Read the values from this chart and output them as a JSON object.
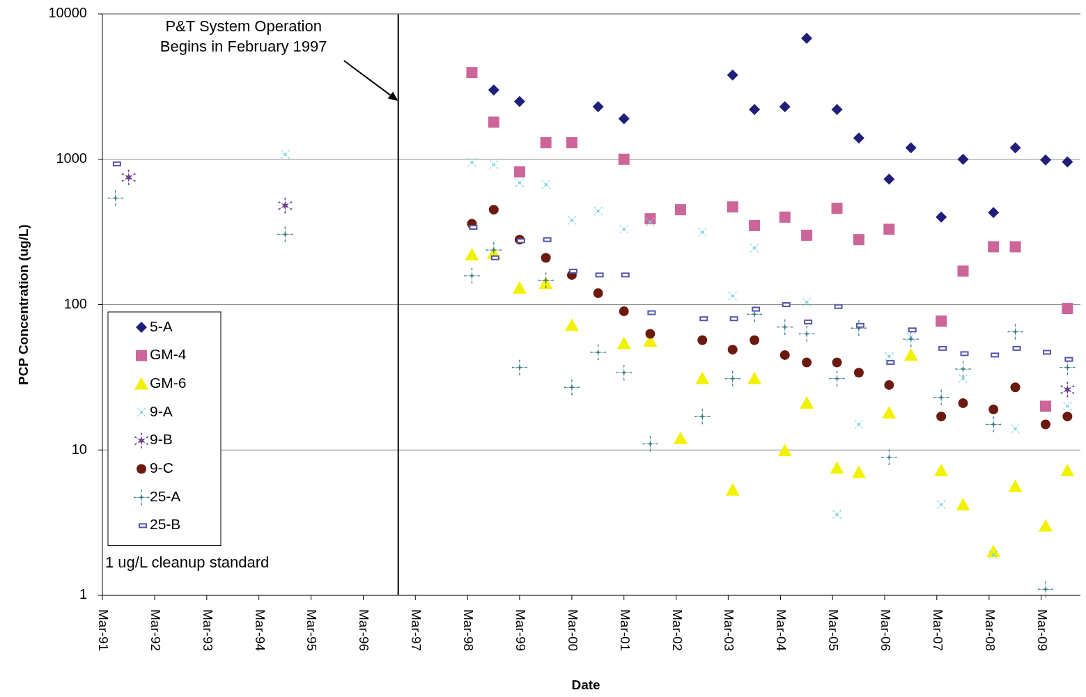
{
  "chart_data": {
    "type": "scatter",
    "xlabel": "Date",
    "ylabel": "PCP Concentration (ug/L)",
    "x": [
      "1991-06",
      "1991-09",
      "1994-09",
      "1998-04",
      "1998-09",
      "1999-03",
      "1999-09",
      "2000-03",
      "2000-09",
      "2001-03",
      "2001-09",
      "2002-04",
      "2002-09",
      "2003-04",
      "2003-09",
      "2004-04",
      "2004-09",
      "2005-04",
      "2005-09",
      "2006-04",
      "2006-09",
      "2007-04",
      "2007-09",
      "2008-04",
      "2008-09",
      "2009-04",
      "2009-09"
    ],
    "series": [
      {
        "name": "5-A",
        "color": "#1f1f7a",
        "marker": "diamond",
        "values": [
          null,
          null,
          null,
          null,
          3000,
          2500,
          null,
          null,
          2300,
          1900,
          null,
          null,
          null,
          3800,
          2200,
          2300,
          6800,
          2200,
          1400,
          730,
          1200,
          400,
          1000,
          430,
          1200,
          990,
          960
        ]
      },
      {
        "name": "GM-4",
        "color": "#cc6699",
        "marker": "square",
        "values": [
          null,
          null,
          null,
          3950,
          1800,
          820,
          1300,
          1300,
          null,
          1000,
          390,
          450,
          null,
          470,
          350,
          400,
          300,
          460,
          280,
          330,
          null,
          77,
          170,
          250,
          250,
          20,
          94
        ]
      },
      {
        "name": "GM-6",
        "color": "#f2f200",
        "marker": "triangle",
        "values": [
          null,
          null,
          null,
          220,
          225,
          130,
          140,
          72,
          null,
          54,
          56,
          12,
          31,
          5.3,
          31,
          9.9,
          21,
          7.5,
          7,
          18,
          45,
          7.2,
          4.2,
          2,
          5.6,
          3,
          7.2
        ]
      },
      {
        "name": "9-A",
        "color": "#7fd3dc",
        "marker": "cross",
        "values": [
          null,
          null,
          1080,
          950,
          920,
          690,
          670,
          380,
          440,
          330,
          370,
          null,
          315,
          115,
          245,
          null,
          104,
          3.6,
          15,
          44,
          60,
          4.2,
          31,
          1.9,
          14,
          null,
          20
        ]
      },
      {
        "name": "9-B",
        "color": "#6b3f8f",
        "marker": "star",
        "values": [
          null,
          750,
          480,
          null,
          null,
          null,
          null,
          null,
          null,
          null,
          null,
          null,
          null,
          null,
          null,
          null,
          null,
          null,
          null,
          null,
          null,
          null,
          null,
          null,
          null,
          null,
          26
        ]
      },
      {
        "name": "9-C",
        "color": "#6b1a0f",
        "marker": "circle",
        "values": [
          null,
          null,
          null,
          360,
          450,
          280,
          210,
          160,
          120,
          90,
          63,
          null,
          57,
          49,
          57,
          45,
          40,
          40,
          34,
          28,
          null,
          17,
          21,
          19,
          27,
          15,
          17
        ]
      },
      {
        "name": "25-A",
        "color": "#3a7a8a",
        "marker": "cross",
        "values": [
          540,
          null,
          305,
          158,
          238,
          37,
          147,
          27,
          47,
          34,
          11,
          null,
          17,
          31,
          86,
          70,
          63,
          31,
          69,
          8.9,
          58,
          23,
          36,
          15,
          65,
          1.1,
          37
        ]
      },
      {
        "name": "25-B",
        "color": "#5555aa",
        "marker": "square",
        "values": [
          930,
          null,
          null,
          340,
          210,
          275,
          280,
          170,
          160,
          160,
          88,
          null,
          80,
          80,
          93,
          100,
          76,
          97,
          72,
          40,
          67,
          50,
          46,
          45,
          50,
          47,
          42
        ]
      }
    ],
    "xlim": [
      "1991-03",
      "2009-12"
    ],
    "xticks": [
      {
        "value": "1991-03",
        "label": "Mar-91"
      },
      {
        "value": "1992-03",
        "label": "Mar-92"
      },
      {
        "value": "1993-03",
        "label": "Mar-93"
      },
      {
        "value": "1994-03",
        "label": "Mar-94"
      },
      {
        "value": "1995-03",
        "label": "Mar-95"
      },
      {
        "value": "1996-03",
        "label": "Mar-96"
      },
      {
        "value": "1997-03",
        "label": "Mar-97"
      },
      {
        "value": "1998-03",
        "label": "Mar-98"
      },
      {
        "value": "1999-03",
        "label": "Mar-99"
      },
      {
        "value": "2000-03",
        "label": "Mar-00"
      },
      {
        "value": "2001-03",
        "label": "Mar-01"
      },
      {
        "value": "2002-03",
        "label": "Mar-02"
      },
      {
        "value": "2003-03",
        "label": "Mar-03"
      },
      {
        "value": "2004-03",
        "label": "Mar-04"
      },
      {
        "value": "2005-03",
        "label": "Mar-05"
      },
      {
        "value": "2006-03",
        "label": "Mar-06"
      },
      {
        "value": "2007-03",
        "label": "Mar-07"
      },
      {
        "value": "2008-03",
        "label": "Mar-08"
      },
      {
        "value": "2009-03",
        "label": "Mar-09"
      }
    ],
    "ylim": [
      1,
      10000
    ],
    "yticks": [
      1,
      10,
      100,
      1000,
      10000
    ],
    "log": "y",
    "grid": "y",
    "legend": "left",
    "ref_lines": [
      {
        "axis": "x",
        "value": "1996-11",
        "color": "#000000",
        "line_style": "solid"
      },
      {
        "axis": "y",
        "value": 1,
        "label": "1 ug/L cleanup standard",
        "color": "#808080",
        "line_style": "solid"
      }
    ],
    "annotations": [
      "P&T System Operation Begins in February 1997"
    ]
  }
}
